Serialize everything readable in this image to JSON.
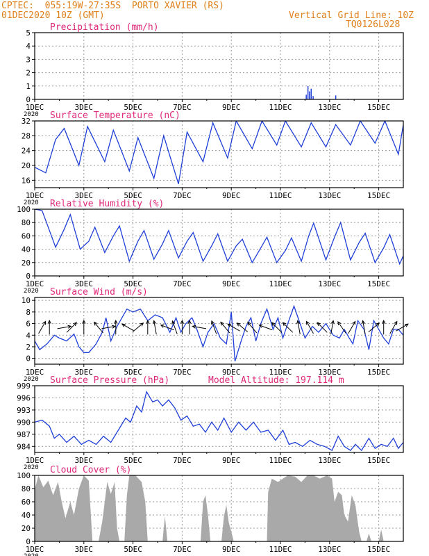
{
  "header": {
    "line1": "CPTEC:  055:19W-27:35S  PORTO XAVIER (RS)",
    "line2": "01DEC2020 10Z (GMT)",
    "grid_note": "Vertical Grid Line: 10Z",
    "code": "TQ0126L028"
  },
  "colors": {
    "header": "#e0801a",
    "title": "#e0287a",
    "series": "#1f3fd8",
    "cloud": "#a9a9a9",
    "wind_arrow": "#000000"
  },
  "chart_data": [
    {
      "type": "bar",
      "title": "Precipitation (mm/h)",
      "ylim": [
        0,
        5
      ],
      "yticks": [
        0,
        1,
        2,
        3,
        4,
        5
      ],
      "xticks": [
        "1DEC",
        "3DEC",
        "5DEC",
        "7DEC",
        "9DEC",
        "11DEC",
        "13DEC",
        "15DEC"
      ],
      "first_tick_year": "2020",
      "xlim_days": [
        1,
        16
      ],
      "grid": true,
      "bars": [
        {
          "day": 3.2,
          "value": 0.04
        },
        {
          "day": 4.9,
          "value": 0.04
        },
        {
          "day": 6.1,
          "value": 0.03
        },
        {
          "day": 12.05,
          "value": 0.35
        },
        {
          "day": 12.12,
          "value": 1.0
        },
        {
          "day": 12.18,
          "value": 0.6
        },
        {
          "day": 12.25,
          "value": 0.8
        },
        {
          "day": 12.33,
          "value": 0.25
        },
        {
          "day": 13.25,
          "value": 0.3
        },
        {
          "day": 13.75,
          "value": 0.05
        }
      ]
    },
    {
      "type": "line",
      "title": "Surface Temperature (nC)",
      "ylim": [
        14,
        32
      ],
      "yticks": [
        16,
        20,
        24,
        28,
        32
      ],
      "xticks": [
        "1DEC",
        "3DEC",
        "5DEC",
        "7DEC",
        "9DEC",
        "11DEC",
        "13DEC",
        "15DEC"
      ],
      "first_tick_year": "2020",
      "xlim_days": [
        1,
        16
      ],
      "grid": true,
      "points": [
        [
          1,
          19.5
        ],
        [
          1.45,
          18
        ],
        [
          1.85,
          27
        ],
        [
          2.2,
          30
        ],
        [
          2.8,
          20
        ],
        [
          3.15,
          30.5
        ],
        [
          3.85,
          21
        ],
        [
          4.2,
          29.5
        ],
        [
          4.85,
          18.5
        ],
        [
          5.2,
          27.5
        ],
        [
          5.85,
          16.5
        ],
        [
          6.25,
          28
        ],
        [
          6.85,
          15
        ],
        [
          7.2,
          29
        ],
        [
          7.85,
          21
        ],
        [
          8.25,
          31.5
        ],
        [
          8.85,
          22
        ],
        [
          9.2,
          32
        ],
        [
          9.85,
          24.5
        ],
        [
          10.25,
          32
        ],
        [
          10.85,
          25.5
        ],
        [
          11.2,
          32
        ],
        [
          11.85,
          25
        ],
        [
          12.25,
          31.5
        ],
        [
          12.85,
          25
        ],
        [
          13.25,
          31
        ],
        [
          13.85,
          25.5
        ],
        [
          14.25,
          32
        ],
        [
          14.85,
          26
        ],
        [
          15.25,
          32
        ],
        [
          15.8,
          23
        ],
        [
          16,
          31
        ]
      ]
    },
    {
      "type": "line",
      "title": "Relative Humidity (%)",
      "ylim": [
        0,
        100
      ],
      "yticks": [
        0,
        20,
        40,
        60,
        80,
        100
      ],
      "xticks": [
        "1DEC",
        "3DEC",
        "5DEC",
        "7DEC",
        "9DEC",
        "11DEC",
        "13DEC",
        "15DEC"
      ],
      "first_tick_year": "2020",
      "xlim_days": [
        1,
        16
      ],
      "grid": true,
      "points": [
        [
          1,
          100
        ],
        [
          1.3,
          98
        ],
        [
          1.85,
          43
        ],
        [
          2.2,
          70
        ],
        [
          2.45,
          92
        ],
        [
          2.85,
          40
        ],
        [
          3.2,
          52
        ],
        [
          3.45,
          73
        ],
        [
          3.85,
          35
        ],
        [
          4.2,
          60
        ],
        [
          4.45,
          75
        ],
        [
          4.85,
          22
        ],
        [
          5.2,
          52
        ],
        [
          5.45,
          68
        ],
        [
          5.85,
          25
        ],
        [
          6.2,
          48
        ],
        [
          6.45,
          68
        ],
        [
          6.85,
          27
        ],
        [
          7.2,
          52
        ],
        [
          7.45,
          65
        ],
        [
          7.85,
          22
        ],
        [
          8.2,
          45
        ],
        [
          8.45,
          63
        ],
        [
          8.85,
          22
        ],
        [
          9.2,
          45
        ],
        [
          9.45,
          55
        ],
        [
          9.85,
          20
        ],
        [
          10.2,
          42
        ],
        [
          10.45,
          58
        ],
        [
          10.85,
          20
        ],
        [
          11.2,
          38
        ],
        [
          11.45,
          57
        ],
        [
          11.85,
          22
        ],
        [
          12.15,
          60
        ],
        [
          12.35,
          79
        ],
        [
          12.85,
          24
        ],
        [
          13.2,
          58
        ],
        [
          13.45,
          80
        ],
        [
          13.85,
          24
        ],
        [
          14.2,
          50
        ],
        [
          14.45,
          64
        ],
        [
          14.85,
          20
        ],
        [
          15.2,
          42
        ],
        [
          15.45,
          62
        ],
        [
          15.85,
          18
        ],
        [
          16,
          30
        ]
      ]
    },
    {
      "type": "line",
      "title": "Surface Wind (m/s)",
      "ylim": [
        -1,
        10.5
      ],
      "yticks": [
        0,
        2,
        4,
        6,
        8,
        10
      ],
      "xticks": [
        "1DEC",
        "3DEC",
        "5DEC",
        "7DEC",
        "9DEC",
        "11DEC",
        "13DEC",
        "15DEC"
      ],
      "first_tick_year": "2020",
      "xlim_days": [
        1,
        16
      ],
      "grid": true,
      "points": [
        [
          1,
          3
        ],
        [
          1.2,
          1.5
        ],
        [
          1.5,
          2.5
        ],
        [
          1.8,
          4
        ],
        [
          2,
          3.5
        ],
        [
          2.3,
          3
        ],
        [
          2.6,
          4.2
        ],
        [
          2.8,
          2
        ],
        [
          3,
          1
        ],
        [
          3.2,
          1
        ],
        [
          3.5,
          2.5
        ],
        [
          3.75,
          4.5
        ],
        [
          3.9,
          7
        ],
        [
          4.1,
          3
        ],
        [
          4.35,
          5.5
        ],
        [
          4.55,
          7
        ],
        [
          4.75,
          8.5
        ],
        [
          5.0,
          8
        ],
        [
          5.3,
          8.5
        ],
        [
          5.6,
          6.5
        ],
        [
          5.9,
          7.5
        ],
        [
          6.2,
          7
        ],
        [
          6.5,
          4.5
        ],
        [
          6.75,
          7
        ],
        [
          6.95,
          4.5
        ],
        [
          7.15,
          6
        ],
        [
          7.4,
          7
        ],
        [
          7.6,
          5
        ],
        [
          7.85,
          2
        ],
        [
          8.05,
          4.5
        ],
        [
          8.3,
          6
        ],
        [
          8.55,
          3.5
        ],
        [
          8.8,
          2.5
        ],
        [
          9.0,
          8
        ],
        [
          9.15,
          -0.5
        ],
        [
          9.4,
          3
        ],
        [
          9.6,
          5.5
        ],
        [
          9.8,
          7
        ],
        [
          10.0,
          3
        ],
        [
          10.2,
          6
        ],
        [
          10.45,
          8.5
        ],
        [
          10.7,
          5
        ],
        [
          10.9,
          7
        ],
        [
          11.1,
          3.5
        ],
        [
          11.3,
          6
        ],
        [
          11.55,
          9
        ],
        [
          11.8,
          6
        ],
        [
          12.0,
          3.5
        ],
        [
          12.3,
          5.5
        ],
        [
          12.55,
          4.5
        ],
        [
          12.85,
          6
        ],
        [
          13.15,
          4
        ],
        [
          13.4,
          3.5
        ],
        [
          13.6,
          5
        ],
        [
          13.8,
          3.5
        ],
        [
          13.95,
          2.5
        ],
        [
          14.15,
          6.5
        ],
        [
          14.4,
          5
        ],
        [
          14.6,
          1.5
        ],
        [
          14.8,
          6.5
        ],
        [
          15.0,
          5
        ],
        [
          15.2,
          3.5
        ],
        [
          15.4,
          2.5
        ],
        [
          15.6,
          5
        ],
        [
          15.8,
          5
        ],
        [
          16,
          4
        ]
      ],
      "arrows": [
        [
          1.3,
          -60
        ],
        [
          1.6,
          -90
        ],
        [
          2.2,
          -10
        ],
        [
          2.5,
          -45
        ],
        [
          3.0,
          -90
        ],
        [
          3.6,
          -130
        ],
        [
          4.0,
          -10
        ],
        [
          4.3,
          -90
        ],
        [
          4.8,
          -150
        ],
        [
          5.2,
          -40
        ],
        [
          5.6,
          -90
        ],
        [
          5.9,
          -100
        ],
        [
          6.4,
          -160
        ],
        [
          6.7,
          -110
        ],
        [
          7.0,
          -90
        ],
        [
          7.3,
          -90
        ],
        [
          7.7,
          -170
        ],
        [
          8.3,
          -110
        ],
        [
          8.75,
          -130
        ],
        [
          9.1,
          -150
        ],
        [
          9.45,
          -140
        ],
        [
          9.85,
          -130
        ],
        [
          10.4,
          -160
        ],
        [
          10.85,
          -135
        ],
        [
          11.3,
          -135
        ],
        [
          11.75,
          -100
        ],
        [
          12.2,
          -120
        ],
        [
          12.7,
          -135
        ],
        [
          13.1,
          -80
        ],
        [
          13.5,
          -125
        ],
        [
          13.9,
          -60
        ],
        [
          14.4,
          -100
        ],
        [
          14.8,
          -40
        ],
        [
          15.2,
          -90
        ],
        [
          15.6,
          -60
        ],
        [
          15.95,
          -30
        ]
      ]
    },
    {
      "type": "line",
      "title": "Surface Pressure (hPa)",
      "annotation": "Model Altitude: 197.114 m",
      "ylim": [
        982.5,
        999
      ],
      "yticks": [
        984,
        987,
        990,
        993,
        996,
        999
      ],
      "xticks": [
        "1DEC",
        "3DEC",
        "5DEC",
        "7DEC",
        "9DEC",
        "11DEC",
        "13DEC",
        "15DEC"
      ],
      "first_tick_year": "2020",
      "xlim_days": [
        1,
        16
      ],
      "grid": true,
      "points": [
        [
          1,
          990
        ],
        [
          1.3,
          990.5
        ],
        [
          1.6,
          989
        ],
        [
          1.8,
          986
        ],
        [
          2.0,
          987
        ],
        [
          2.3,
          985
        ],
        [
          2.6,
          986.5
        ],
        [
          2.9,
          984.5
        ],
        [
          3.2,
          985.5
        ],
        [
          3.5,
          984.5
        ],
        [
          3.8,
          986.5
        ],
        [
          4.1,
          985
        ],
        [
          4.4,
          988
        ],
        [
          4.7,
          991
        ],
        [
          4.9,
          990
        ],
        [
          5.15,
          994
        ],
        [
          5.35,
          992.5
        ],
        [
          5.55,
          997.5
        ],
        [
          5.8,
          995
        ],
        [
          6.0,
          995.5
        ],
        [
          6.2,
          994
        ],
        [
          6.45,
          995.5
        ],
        [
          6.7,
          993.5
        ],
        [
          6.95,
          990.5
        ],
        [
          7.2,
          991.5
        ],
        [
          7.45,
          989
        ],
        [
          7.7,
          989.5
        ],
        [
          7.95,
          987.5
        ],
        [
          8.2,
          990
        ],
        [
          8.45,
          988
        ],
        [
          8.7,
          991
        ],
        [
          9.0,
          987.5
        ],
        [
          9.3,
          990
        ],
        [
          9.6,
          988
        ],
        [
          9.9,
          990
        ],
        [
          10.2,
          987.5
        ],
        [
          10.5,
          988
        ],
        [
          10.8,
          985.5
        ],
        [
          11.1,
          988
        ],
        [
          11.35,
          984.5
        ],
        [
          11.6,
          985
        ],
        [
          11.9,
          984
        ],
        [
          12.2,
          985.5
        ],
        [
          12.5,
          984.5
        ],
        [
          12.8,
          984
        ],
        [
          13.1,
          983
        ],
        [
          13.35,
          986.5
        ],
        [
          13.6,
          984
        ],
        [
          13.85,
          983
        ],
        [
          14.05,
          984.5
        ],
        [
          14.3,
          983
        ],
        [
          14.6,
          986
        ],
        [
          14.85,
          983.5
        ],
        [
          15.1,
          984.5
        ],
        [
          15.35,
          984
        ],
        [
          15.6,
          986
        ],
        [
          15.8,
          983.5
        ],
        [
          16,
          985
        ]
      ]
    },
    {
      "type": "area",
      "title": "Cloud Cover (%)",
      "ylim": [
        0,
        100
      ],
      "yticks": [
        0,
        20,
        40,
        60,
        80,
        100
      ],
      "xticks": [
        "1DEC",
        "3DEC",
        "5DEC",
        "7DEC",
        "9DEC",
        "11DEC",
        "13DEC",
        "15DEC"
      ],
      "first_tick_year": "2020",
      "xlim_days": [
        1,
        16
      ],
      "grid": true,
      "points": [
        [
          1,
          78
        ],
        [
          1.15,
          100
        ],
        [
          1.35,
          82
        ],
        [
          1.55,
          92
        ],
        [
          1.75,
          70
        ],
        [
          1.95,
          90
        ],
        [
          2.1,
          60
        ],
        [
          2.25,
          35
        ],
        [
          2.45,
          60
        ],
        [
          2.6,
          40
        ],
        [
          2.8,
          80
        ],
        [
          3.0,
          100
        ],
        [
          3.2,
          92
        ],
        [
          3.35,
          0
        ],
        [
          3.6,
          0
        ],
        [
          3.75,
          30
        ],
        [
          3.85,
          60
        ],
        [
          3.95,
          90
        ],
        [
          4.1,
          72
        ],
        [
          4.25,
          90
        ],
        [
          4.35,
          20
        ],
        [
          4.45,
          0
        ],
        [
          4.65,
          0
        ],
        [
          4.75,
          70
        ],
        [
          4.85,
          100
        ],
        [
          5.1,
          100
        ],
        [
          5.35,
          90
        ],
        [
          5.5,
          60
        ],
        [
          5.6,
          0
        ],
        [
          6.2,
          0
        ],
        [
          6.3,
          38
        ],
        [
          6.4,
          0
        ],
        [
          7.75,
          0
        ],
        [
          7.85,
          60
        ],
        [
          7.95,
          70
        ],
        [
          8.05,
          40
        ],
        [
          8.15,
          0
        ],
        [
          8.6,
          0
        ],
        [
          8.7,
          38
        ],
        [
          8.8,
          55
        ],
        [
          8.9,
          28
        ],
        [
          9.0,
          15
        ],
        [
          9.1,
          0
        ],
        [
          10.45,
          0
        ],
        [
          10.5,
          75
        ],
        [
          10.65,
          95
        ],
        [
          10.9,
          90
        ],
        [
          11.1,
          95
        ],
        [
          11.3,
          100
        ],
        [
          11.6,
          98
        ],
        [
          11.85,
          90
        ],
        [
          12.1,
          100
        ],
        [
          12.35,
          100
        ],
        [
          12.6,
          95
        ],
        [
          12.9,
          100
        ],
        [
          13.1,
          95
        ],
        [
          13.2,
          60
        ],
        [
          13.35,
          75
        ],
        [
          13.5,
          70
        ],
        [
          13.6,
          40
        ],
        [
          13.75,
          30
        ],
        [
          13.9,
          70
        ],
        [
          14.05,
          55
        ],
        [
          14.2,
          15
        ],
        [
          14.3,
          0
        ],
        [
          14.5,
          0
        ],
        [
          14.6,
          12
        ],
        [
          14.7,
          0
        ],
        [
          15.0,
          0
        ],
        [
          15.1,
          18
        ],
        [
          15.2,
          0
        ],
        [
          16,
          0
        ]
      ]
    }
  ]
}
